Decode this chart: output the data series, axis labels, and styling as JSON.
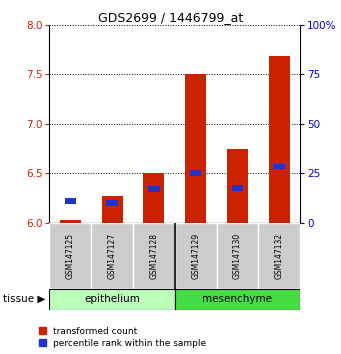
{
  "title": "GDS2699 / 1446799_at",
  "samples": [
    "GSM147125",
    "GSM147127",
    "GSM147128",
    "GSM147129",
    "GSM147130",
    "GSM147132"
  ],
  "red_values": [
    6.03,
    6.27,
    6.5,
    7.5,
    6.75,
    7.68
  ],
  "blue_values": [
    6.22,
    6.2,
    6.34,
    6.5,
    6.35,
    6.57
  ],
  "red_base": 6.0,
  "ylim": [
    6.0,
    8.0
  ],
  "yticks": [
    6.0,
    6.5,
    7.0,
    7.5,
    8.0
  ],
  "right_yticks": [
    0,
    25,
    50,
    75,
    100
  ],
  "right_ylim": [
    0,
    100
  ],
  "bar_width": 0.5,
  "red_color": "#CC2200",
  "blue_color": "#2233CC",
  "left_tick_color": "#CC2200",
  "right_tick_color": "#0000CC",
  "epi_color": "#BBFFBB",
  "mes_color": "#44DD44",
  "legend_red": "transformed count",
  "legend_blue": "percentile rank within the sample"
}
